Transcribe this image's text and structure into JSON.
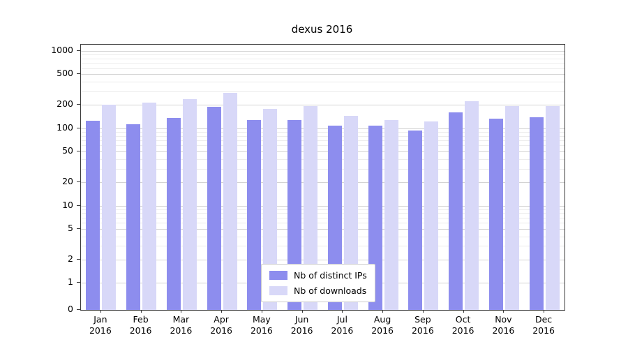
{
  "chart_data": {
    "type": "bar",
    "title": "dexus 2016",
    "categories": [
      "Jan 2016",
      "Feb 2016",
      "Mar 2016",
      "Apr 2016",
      "May 2016",
      "Jun 2016",
      "Jul 2016",
      "Aug 2016",
      "Sep 2016",
      "Oct 2016",
      "Nov 2016",
      "Dec 2016"
    ],
    "series": [
      {
        "name": "Nb of distinct IPs",
        "color": "#8d8dee",
        "values": [
          125,
          112,
          135,
          190,
          128,
          128,
          108,
          108,
          93,
          160,
          132,
          138
        ]
      },
      {
        "name": "Nb of downloads",
        "color": "#d8d8f8",
        "values": [
          200,
          215,
          240,
          285,
          180,
          195,
          145,
          128,
          122,
          225,
          195,
          195
        ]
      }
    ],
    "yscale": "symlog",
    "yticks": [
      0,
      1,
      2,
      5,
      10,
      20,
      50,
      100,
      200,
      500,
      1000
    ],
    "ylim": [
      0,
      1205
    ],
    "xlabel": "",
    "ylabel": "",
    "grid": true,
    "legend_position": "lower center"
  },
  "colors": {
    "grid_major": "#d3d3d3",
    "grid_minor": "#ececec",
    "axis": "#3a3a3a",
    "background": "#ffffff"
  }
}
